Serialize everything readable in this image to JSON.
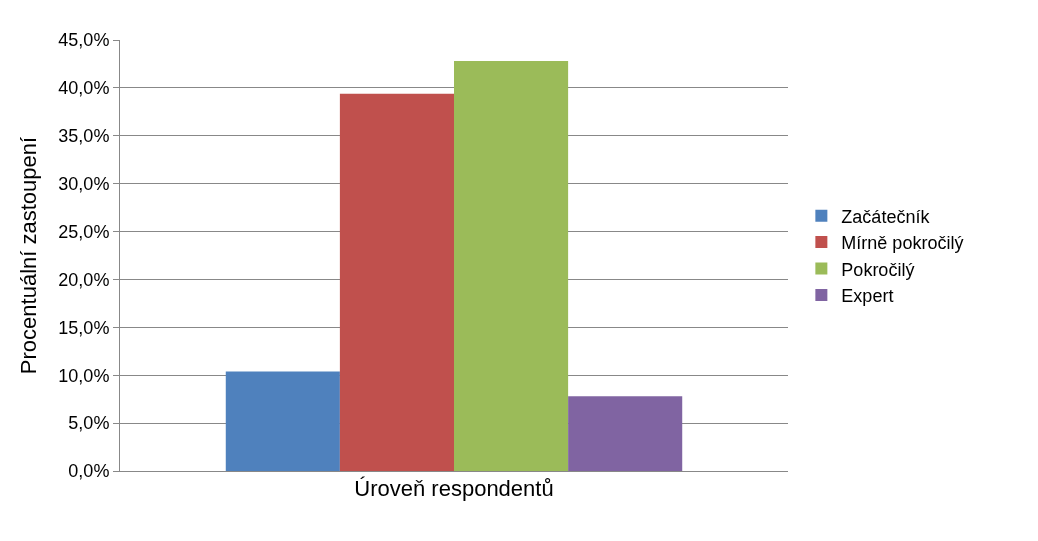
{
  "chart_data": {
    "type": "bar",
    "xlabel": "Úroveň respondentů",
    "ylabel": "Procentuální zastoupení",
    "categories": [
      null
    ],
    "series": [
      {
        "name": "Začátečník",
        "color": "#4f81bd",
        "values": [
          10.4
        ]
      },
      {
        "name": "Mírně pokročilý",
        "color": "#c0504d",
        "values": [
          39.4
        ]
      },
      {
        "name": "Pokročilý",
        "color": "#9bbb59",
        "values": [
          42.8
        ]
      },
      {
        "name": "Expert",
        "color": "#8064a2",
        "values": [
          7.8
        ]
      }
    ],
    "ylim": [
      0,
      45
    ],
    "yticks": [
      {
        "value": 0,
        "label": "0,0%"
      },
      {
        "value": 5,
        "label": "5,0%"
      },
      {
        "value": 10,
        "label": "10,0%"
      },
      {
        "value": 15,
        "label": "15,0%"
      },
      {
        "value": 20,
        "label": "20,0%"
      },
      {
        "value": 25,
        "label": "25,0%"
      },
      {
        "value": 30,
        "label": "30,0%"
      },
      {
        "value": 35,
        "label": "35,0%"
      },
      {
        "value": 40,
        "label": "40,0%"
      },
      {
        "value": 45,
        "label": "45,0%"
      }
    ],
    "grid": "y",
    "legend": "right"
  }
}
